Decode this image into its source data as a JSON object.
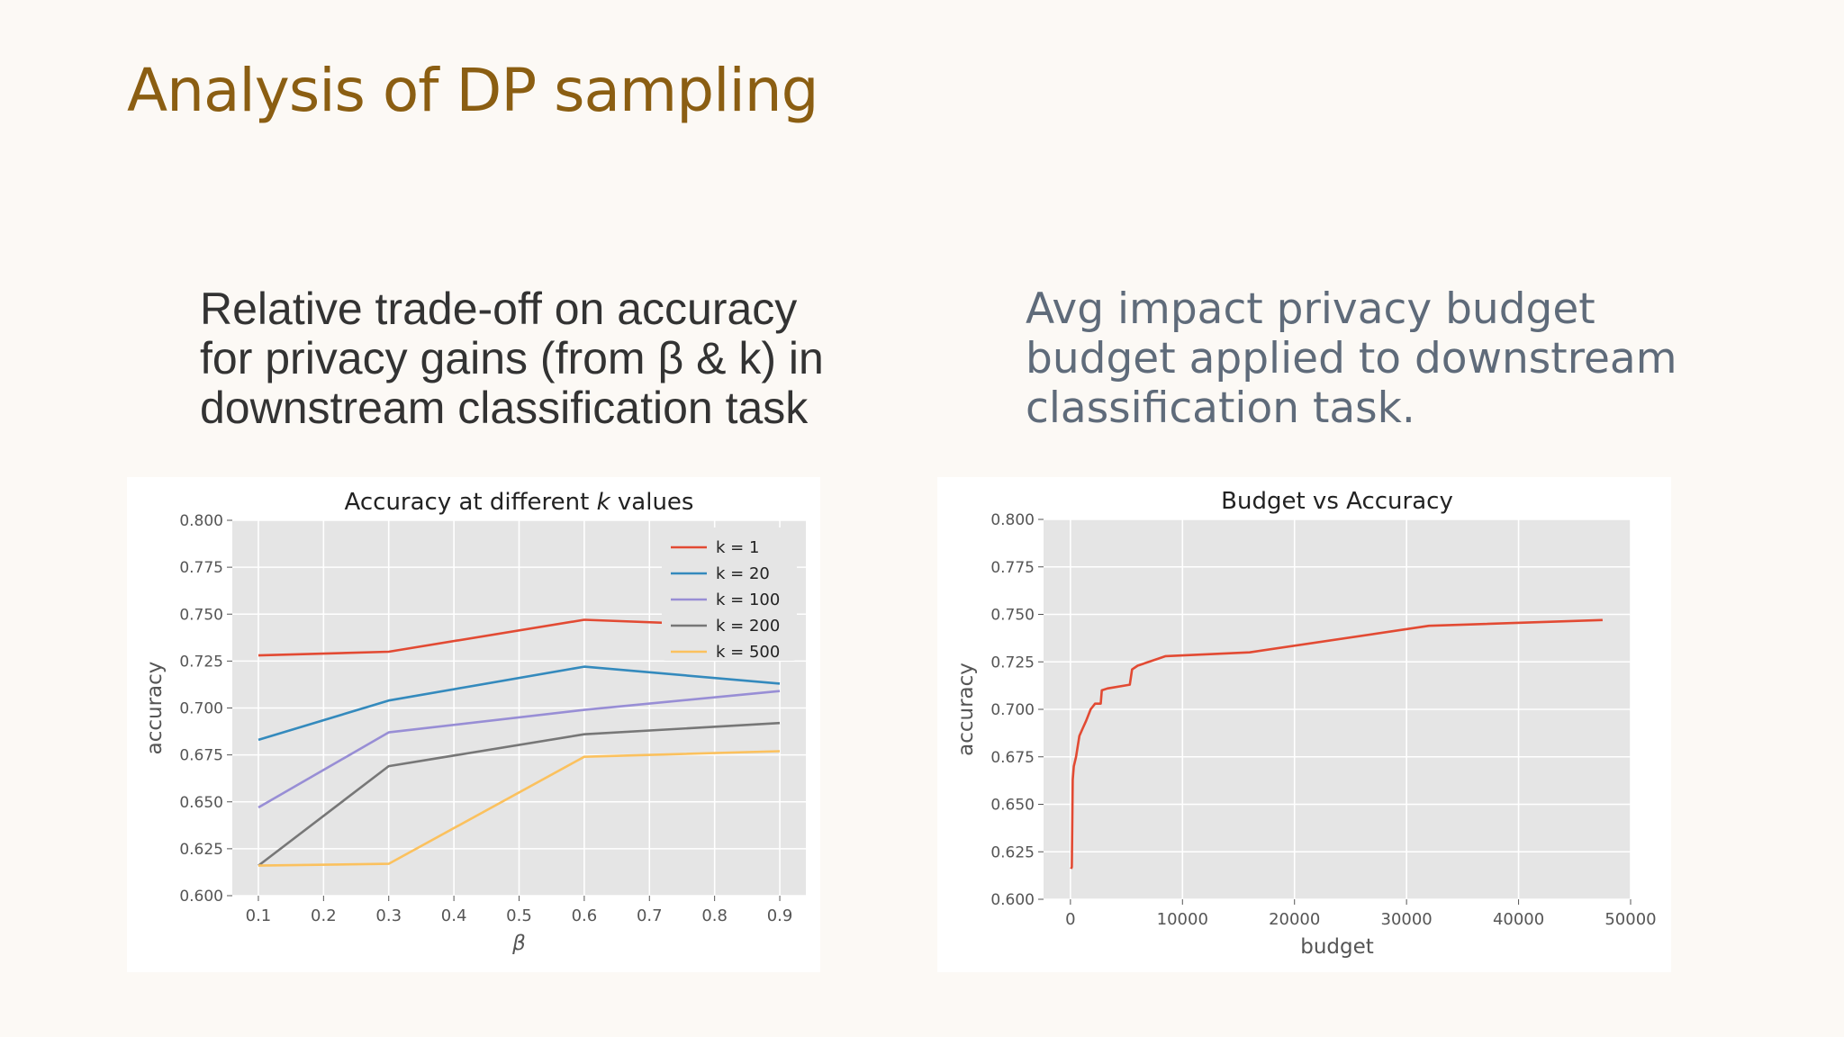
{
  "slide": {
    "title": "Analysis of DP sampling",
    "caption_left": "Relative trade-off on accuracy for privacy gains (from β & k) in downstream classification task",
    "caption_right": "Avg impact privacy budget budget applied to downstream classification task."
  },
  "colors": {
    "title": "#8b5e12",
    "plot_bg": "#e5e5e5",
    "k1": "#e24a33",
    "k20": "#348abd",
    "k100": "#988ed5",
    "k200": "#777777",
    "k500": "#fbc15e"
  },
  "chart_data": [
    {
      "type": "line",
      "title": "Accuracy at different k values",
      "xlabel": "β",
      "ylabel": "accuracy",
      "xlim": [
        0.06,
        0.94
      ],
      "ylim": [
        0.6,
        0.8
      ],
      "xticks": [
        "0.1",
        "0.2",
        "0.3",
        "0.4",
        "0.5",
        "0.6",
        "0.7",
        "0.8",
        "0.9"
      ],
      "yticks": [
        "0.600",
        "0.625",
        "0.650",
        "0.675",
        "0.700",
        "0.725",
        "0.750",
        "0.775",
        "0.800"
      ],
      "grid": true,
      "legend": "top-right",
      "x": [
        0.1,
        0.3,
        0.6,
        0.9
      ],
      "series": [
        {
          "name": "k = 1",
          "color": "#e24a33",
          "values": [
            0.728,
            0.73,
            0.747,
            0.743
          ]
        },
        {
          "name": "k = 20",
          "color": "#348abd",
          "values": [
            0.683,
            0.704,
            0.722,
            0.713
          ]
        },
        {
          "name": "k = 100",
          "color": "#988ed5",
          "values": [
            0.647,
            0.687,
            0.699,
            0.709
          ]
        },
        {
          "name": "k = 200",
          "color": "#777777",
          "values": [
            0.616,
            0.669,
            0.686,
            0.692
          ]
        },
        {
          "name": "k = 500",
          "color": "#fbc15e",
          "values": [
            0.616,
            0.617,
            0.674,
            0.677
          ]
        }
      ]
    },
    {
      "type": "line",
      "title": "Budget vs Accuracy",
      "xlabel": "budget",
      "ylabel": "accuracy",
      "xlim": [
        -2400,
        50000
      ],
      "ylim": [
        0.6,
        0.8
      ],
      "xticks": [
        "0",
        "10000",
        "20000",
        "30000",
        "40000",
        "50000"
      ],
      "yticks": [
        "0.600",
        "0.625",
        "0.650",
        "0.675",
        "0.700",
        "0.725",
        "0.750",
        "0.775",
        "0.800"
      ],
      "grid": true,
      "series": [
        {
          "color": "#e24a33",
          "x": [
            60,
            120,
            200,
            300,
            500,
            800,
            1100,
            1400,
            1800,
            2200,
            2700,
            2800,
            3300,
            5300,
            5500,
            6000,
            8000,
            8500,
            16000,
            32000,
            47500
          ],
          "values": [
            0.616,
            0.617,
            0.663,
            0.67,
            0.675,
            0.686,
            0.69,
            0.694,
            0.7,
            0.703,
            0.703,
            0.71,
            0.711,
            0.713,
            0.721,
            0.723,
            0.727,
            0.728,
            0.73,
            0.744,
            0.747
          ]
        }
      ]
    }
  ]
}
